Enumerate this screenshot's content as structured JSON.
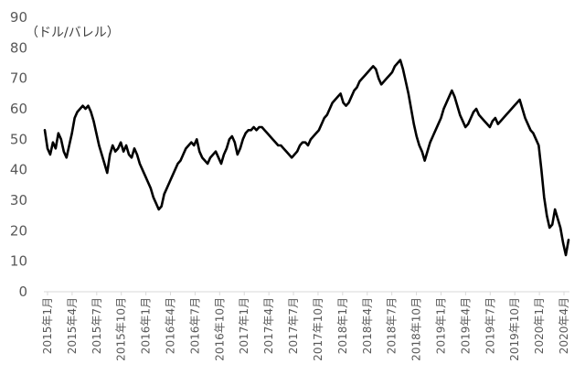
{
  "chart_data": {
    "type": "line",
    "title": "",
    "xlabel": "",
    "ylabel": "（ドル/バレル）",
    "ylim": [
      0,
      90
    ],
    "grid": false,
    "legend": "none",
    "yticks": [
      0,
      10,
      20,
      30,
      40,
      50,
      60,
      70,
      80,
      90
    ],
    "xticks": [
      "2015年1月",
      "2015年4月",
      "2015年7月",
      "2015年10月",
      "2016年1月",
      "2016年4月",
      "2016年7月",
      "2016年10月",
      "2017年1月",
      "2017年4月",
      "2017年7月",
      "2017年10月",
      "2018年1月",
      "2018年4月",
      "2018年7月",
      "2018年10月",
      "2019年1月",
      "2019年4月",
      "2019年7月",
      "2019年10月",
      "2020年1月",
      "2020年4月"
    ],
    "line_color": "#000000",
    "series": [
      {
        "values": [
          53,
          47,
          45,
          49,
          47,
          52,
          50,
          46,
          44,
          48,
          52,
          57,
          59,
          60,
          61,
          60,
          61,
          59,
          56,
          52,
          48,
          45,
          42,
          39,
          45,
          48,
          46,
          47,
          49,
          46,
          48,
          45,
          44,
          47,
          45,
          42,
          40,
          38,
          36,
          34,
          31,
          29,
          27,
          28,
          32,
          34,
          36,
          38,
          40,
          42,
          43,
          45,
          47,
          48,
          49,
          48,
          50,
          46,
          44,
          43,
          42,
          44,
          45,
          46,
          44,
          42,
          45,
          47,
          50,
          51,
          49,
          45,
          47,
          50,
          52,
          53,
          53,
          54,
          53,
          54,
          54,
          53,
          52,
          51,
          50,
          49,
          48,
          48,
          47,
          46,
          45,
          44,
          45,
          46,
          48,
          49,
          49,
          48,
          50,
          51,
          52,
          53,
          55,
          57,
          58,
          60,
          62,
          63,
          64,
          65,
          62,
          61,
          62,
          64,
          66,
          67,
          69,
          70,
          71,
          72,
          73,
          74,
          73,
          70,
          68,
          69,
          70,
          71,
          72,
          74,
          75,
          76,
          73,
          69,
          65,
          60,
          55,
          51,
          48,
          46,
          43,
          46,
          49,
          51,
          53,
          55,
          57,
          60,
          62,
          64,
          66,
          64,
          61,
          58,
          56,
          54,
          55,
          57,
          59,
          60,
          58,
          57,
          56,
          55,
          54,
          56,
          57,
          55,
          56,
          57,
          58,
          59,
          60,
          61,
          62,
          63,
          60,
          57,
          55,
          53,
          52,
          50,
          48,
          40,
          31,
          25,
          21,
          22,
          27,
          24,
          21,
          16,
          12,
          17
        ]
      }
    ]
  }
}
